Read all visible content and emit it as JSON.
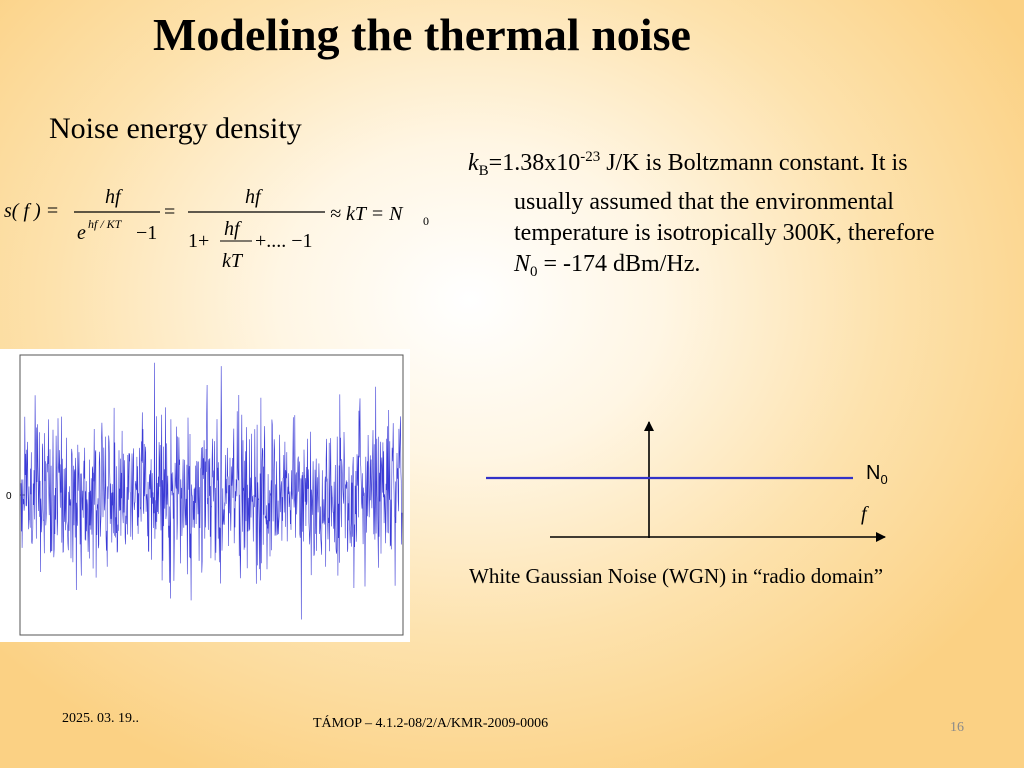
{
  "slide": {
    "title": "Modeling the thermal noise",
    "subtitle": "Noise energy density"
  },
  "formula": {
    "lhs": "s( f ) =",
    "frac1_num": "hf",
    "frac1_den_base": "e",
    "frac1_den_exp": "hf / KT",
    "frac1_den_tail": "−1",
    "eq": "=",
    "frac2_num": "hf",
    "frac2_den_lead": "1+",
    "frac2_inner_num": "hf",
    "frac2_inner_den": "kT",
    "frac2_den_tail": "+.... −1",
    "approx": "≈ kT = N",
    "approx_sub": "0"
  },
  "info": {
    "k_symbol": "k",
    "k_sub": "B",
    "k_value": "=1.38x10",
    "k_exp": "-23",
    "line1_rest": " J/K is Boltzmann constant.  It is",
    "line2": "usually assumed that the environmental",
    "line3": "temperature is isotropically 300K, therefore",
    "n_symbol": "N",
    "n_sub": "0",
    "n_rest": " = -174 dBm/Hz."
  },
  "noise_plot": {
    "y_tick_label": "0",
    "line_color": "#3b3bd6"
  },
  "wgn_diagram": {
    "level_label": "N",
    "level_label_sub": "0",
    "axis_label": "f",
    "level_color": "#3232c8",
    "caption": "White Gaussian Noise (WGN) in “radio domain”"
  },
  "footer": {
    "date": "2025. 03. 19..",
    "project": "TÁMOP – 4.1.2-08/2/A/KMR-2009-0006",
    "page": "16"
  }
}
